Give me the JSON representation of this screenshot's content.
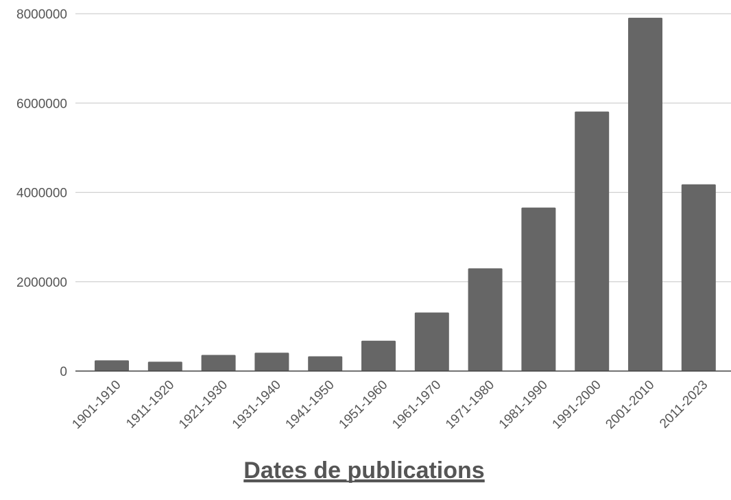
{
  "chart_data": {
    "type": "bar",
    "title": "Dates de publications",
    "xlabel": "",
    "ylabel": "",
    "categories": [
      "1901-1910",
      "1911-1920",
      "1921-1930",
      "1931-1940",
      "1941-1950",
      "1951-1960",
      "1961-1970",
      "1971-1980",
      "1981-1990",
      "1991-2000",
      "2001-2010",
      "2011-2023"
    ],
    "values": [
      240000,
      210000,
      360000,
      410000,
      330000,
      680000,
      1310000,
      2300000,
      3660000,
      5810000,
      7910000,
      4180000
    ],
    "ylim": [
      0,
      8000000
    ],
    "yticks": [
      0,
      2000000,
      4000000,
      6000000,
      8000000
    ],
    "ytick_labels": [
      "0",
      "2000000",
      "4000000",
      "6000000",
      "8000000"
    ],
    "grid": true,
    "legend": "none",
    "bar_color": "#666666",
    "grid_color": "#d0d0d0",
    "text_color": "#555555"
  }
}
